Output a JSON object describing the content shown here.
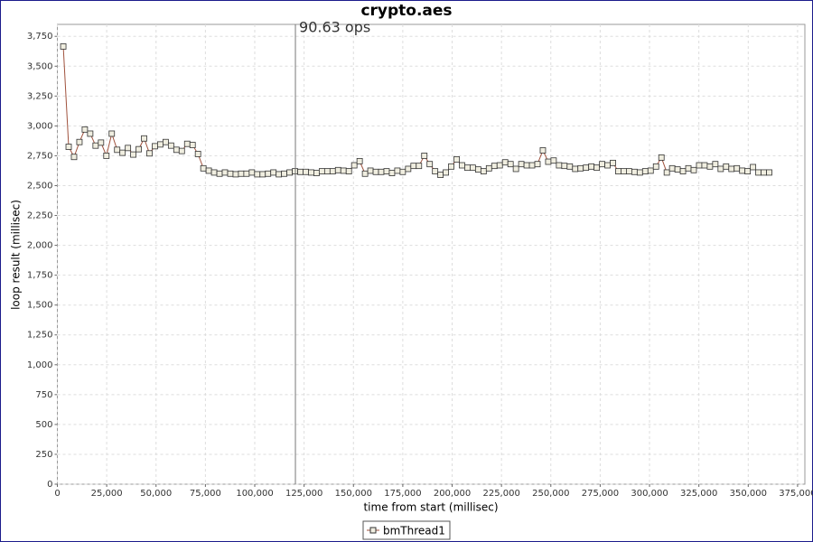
{
  "chart_data": {
    "type": "line",
    "title": "crypto.aes",
    "x_label": "time from start (millisec)",
    "y_label": "loop result (millisec)",
    "x": [
      3000,
      5730,
      8460,
      11190,
      13920,
      16650,
      19380,
      22110,
      24840,
      27570,
      30300,
      33030,
      35760,
      38490,
      41220,
      43950,
      46680,
      49410,
      52140,
      54870,
      57600,
      60330,
      63060,
      65790,
      68520,
      71250,
      73980,
      76710,
      79440,
      82170,
      84900,
      87630,
      90360,
      93090,
      95820,
      98550,
      101280,
      104010,
      106740,
      109470,
      112200,
      114930,
      117660,
      120390,
      123120,
      125850,
      128580,
      131310,
      134040,
      136770,
      139500,
      142230,
      144960,
      147690,
      150420,
      153150,
      155880,
      158610,
      161340,
      164070,
      166800,
      169530,
      172260,
      174990,
      177720,
      180450,
      183180,
      185910,
      188640,
      191370,
      194100,
      196830,
      199560,
      202290,
      205020,
      207750,
      210480,
      213210,
      215940,
      218670,
      221400,
      224130,
      226860,
      229590,
      232320,
      235050,
      237780,
      240510,
      243240,
      245970,
      248700,
      251430,
      254160,
      256890,
      259620,
      262350,
      265080,
      267810,
      270540,
      273270,
      276000,
      278730,
      281460,
      284190,
      286920,
      289650,
      292380,
      295110,
      297840,
      300570,
      303300,
      306030,
      308760,
      311490,
      314220,
      316950,
      319680,
      322410,
      325140,
      327870,
      330600,
      333330,
      336060,
      338790,
      341520,
      344250,
      346980,
      349710,
      352440,
      355170,
      357900,
      360630
    ],
    "series": [
      {
        "name": "bmThread1",
        "color": "#a0523d",
        "marker_fill": "#f0eee0",
        "marker_stroke": "#333333",
        "values": [
          3665,
          2825,
          2740,
          2865,
          2970,
          2935,
          2835,
          2860,
          2750,
          2935,
          2800,
          2775,
          2815,
          2760,
          2805,
          2895,
          2770,
          2830,
          2845,
          2865,
          2835,
          2800,
          2790,
          2850,
          2840,
          2765,
          2645,
          2625,
          2610,
          2600,
          2610,
          2600,
          2595,
          2600,
          2600,
          2610,
          2595,
          2595,
          2600,
          2610,
          2595,
          2600,
          2610,
          2620,
          2615,
          2615,
          2610,
          2605,
          2620,
          2620,
          2620,
          2630,
          2625,
          2620,
          2670,
          2705,
          2600,
          2625,
          2615,
          2615,
          2620,
          2605,
          2625,
          2615,
          2640,
          2665,
          2665,
          2750,
          2680,
          2620,
          2590,
          2610,
          2660,
          2720,
          2670,
          2650,
          2650,
          2635,
          2620,
          2645,
          2665,
          2670,
          2695,
          2680,
          2640,
          2680,
          2670,
          2670,
          2680,
          2795,
          2700,
          2710,
          2670,
          2665,
          2660,
          2640,
          2645,
          2650,
          2660,
          2650,
          2680,
          2670,
          2690,
          2620,
          2620,
          2620,
          2615,
          2610,
          2620,
          2625,
          2660,
          2735,
          2610,
          2645,
          2635,
          2620,
          2645,
          2630,
          2670,
          2670,
          2660,
          2680,
          2640,
          2660,
          2640,
          2645,
          2625,
          2620,
          2655,
          2610,
          2610,
          2610
        ]
      }
    ],
    "xlim": [
      0,
      378700
    ],
    "ylim": [
      0,
      3850
    ],
    "xticks": [
      0,
      {
        "value": 25000,
        "label": "25,000"
      },
      {
        "value": 50000,
        "label": "50,000"
      },
      {
        "value": 75000,
        "label": "75,000"
      },
      {
        "value": 100000,
        "label": "100,000"
      },
      {
        "value": 125000,
        "label": "125,000"
      },
      {
        "value": 150000,
        "label": "150,000"
      },
      {
        "value": 175000,
        "label": "175,000"
      },
      {
        "value": 200000,
        "label": "200,000"
      },
      {
        "value": 225000,
        "label": "225,000"
      },
      {
        "value": 250000,
        "label": "250,000"
      },
      {
        "value": 275000,
        "label": "275,000"
      },
      {
        "value": 300000,
        "label": "300,000"
      },
      {
        "value": 325000,
        "label": "325,000"
      },
      {
        "value": 350000,
        "label": "350,000"
      },
      {
        "value": 375000,
        "label": "375,000"
      }
    ],
    "yticks": [
      0,
      250,
      500,
      750,
      {
        "value": 1000,
        "label": "1,000"
      },
      {
        "value": 1250,
        "label": "1,250"
      },
      {
        "value": 1500,
        "label": "1,500"
      },
      {
        "value": 1750,
        "label": "1,750"
      },
      {
        "value": 2000,
        "label": "2,000"
      },
      {
        "value": 2250,
        "label": "2,250"
      },
      {
        "value": 2500,
        "label": "2,500"
      },
      {
        "value": 2750,
        "label": "2,750"
      },
      {
        "value": 3000,
        "label": "3,000"
      },
      {
        "value": 3250,
        "label": "3,250"
      },
      {
        "value": 3500,
        "label": "3,500"
      },
      {
        "value": 3750,
        "label": "3,750"
      }
    ],
    "grid": true,
    "legend": "bottom",
    "marker": {
      "x": 120600,
      "label": "90.63 ops"
    }
  }
}
